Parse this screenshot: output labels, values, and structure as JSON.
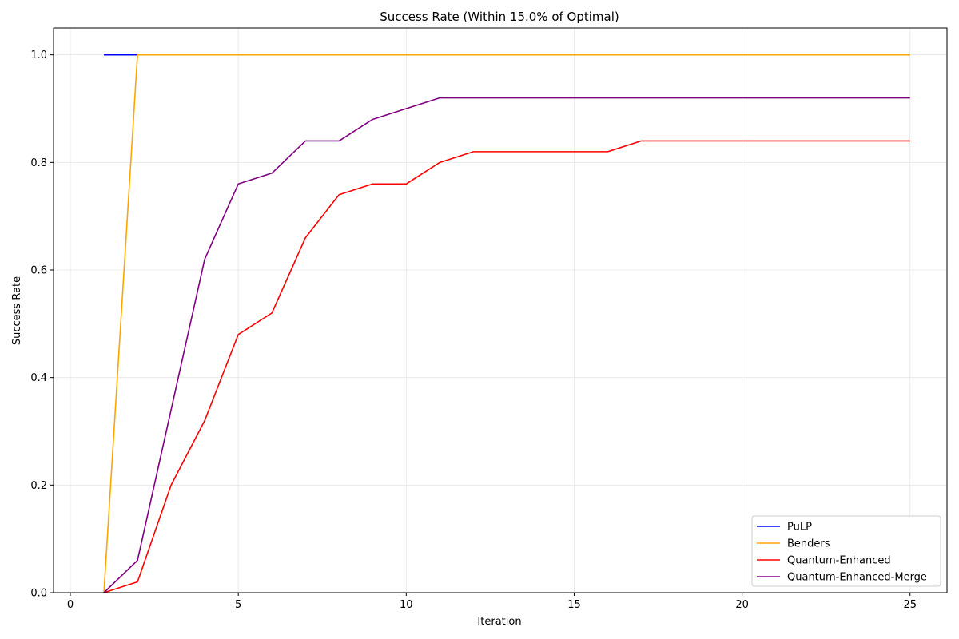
{
  "chart_data": {
    "type": "line",
    "title": "Success Rate (Within 15.0% of Optimal)",
    "xlabel": "Iteration",
    "ylabel": "Success Rate",
    "xlim": [
      -0.5,
      26.1
    ],
    "ylim": [
      0.0,
      1.05
    ],
    "xticks": [
      0,
      5,
      10,
      15,
      20,
      25
    ],
    "yticks": [
      0.0,
      0.2,
      0.4,
      0.6,
      0.8,
      1.0
    ],
    "xtick_labels": [
      "0",
      "5",
      "10",
      "15",
      "20",
      "25"
    ],
    "ytick_labels": [
      "0.0",
      "0.2",
      "0.4",
      "0.6",
      "0.8",
      "1.0"
    ],
    "grid": true,
    "legend_position": "lower-right",
    "series": [
      {
        "name": "PuLP",
        "color": "#0000ff",
        "x": [
          1,
          2
        ],
        "values": [
          1.0,
          1.0
        ]
      },
      {
        "name": "Benders",
        "color": "#ffa500",
        "x": [
          1,
          2,
          3,
          4,
          5,
          6,
          7,
          8,
          9,
          10,
          11,
          12,
          13,
          14,
          15,
          16,
          17,
          18,
          19,
          20,
          21,
          22,
          23,
          24,
          25
        ],
        "values": [
          0.0,
          1.0,
          1.0,
          1.0,
          1.0,
          1.0,
          1.0,
          1.0,
          1.0,
          1.0,
          1.0,
          1.0,
          1.0,
          1.0,
          1.0,
          1.0,
          1.0,
          1.0,
          1.0,
          1.0,
          1.0,
          1.0,
          1.0,
          1.0,
          1.0
        ]
      },
      {
        "name": "Quantum-Enhanced",
        "color": "#ff0000",
        "x": [
          1,
          2,
          3,
          4,
          5,
          6,
          7,
          8,
          9,
          10,
          11,
          12,
          13,
          14,
          15,
          16,
          17,
          18,
          19,
          20,
          21,
          22,
          23,
          24,
          25
        ],
        "values": [
          0.0,
          0.02,
          0.2,
          0.32,
          0.48,
          0.52,
          0.66,
          0.74,
          0.76,
          0.76,
          0.8,
          0.82,
          0.82,
          0.82,
          0.82,
          0.82,
          0.84,
          0.84,
          0.84,
          0.84,
          0.84,
          0.84,
          0.84,
          0.84,
          0.84
        ]
      },
      {
        "name": "Quantum-Enhanced-Merge",
        "color": "#800080",
        "x": [
          1,
          2,
          3,
          4,
          5,
          6,
          7,
          8,
          9,
          10,
          11,
          12,
          13,
          14,
          15,
          16,
          17,
          18,
          19,
          20,
          21,
          22,
          23,
          24,
          25
        ],
        "values": [
          0.0,
          0.06,
          0.34,
          0.62,
          0.76,
          0.78,
          0.84,
          0.84,
          0.88,
          0.9,
          0.92,
          0.92,
          0.92,
          0.92,
          0.92,
          0.92,
          0.92,
          0.92,
          0.92,
          0.92,
          0.92,
          0.92,
          0.92,
          0.92,
          0.92
        ]
      }
    ]
  }
}
